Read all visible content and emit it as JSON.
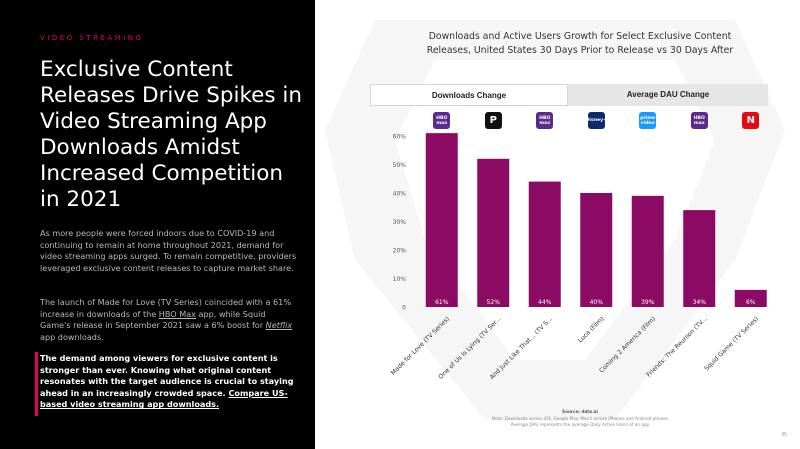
{
  "left": {
    "eyebrow": "VIDEO STREAMING",
    "headline": "Exclusive Content Releases Drive Spikes in Video Streaming App Downloads Amidst Increased Competition in 2021",
    "para1": "As more people were forced indoors due to COVID-19 and continuing to remain at home throughout 2021, demand for video streaming apps surged. To remain competitive, providers leveraged exclusive content releases to capture market share.",
    "para2_a": "The launch of Made for Love (TV Series) coincided with a 61% increase in downloads of the ",
    "para2_link1": "HBO Max",
    "para2_b": " app, while Squid Game's release in September 2021 saw a 6% boost for ",
    "para2_link2": "Netflix",
    "para2_c": " app downloads.",
    "bold_a": "The demand among viewers for exclusive content is stronger than ever. Knowing what original content resonates with the target audience is crucial to staying ahead in an increasingly crowded space. ",
    "bold_link": "Compare US-based video streaming app downloads."
  },
  "chart_title": "Downloads and Active Users Growth for Select Exclusive Content Releases, United States 30 Days Prior to Release vs 30 Days After",
  "tabs": [
    {
      "label": "Downloads Change",
      "active": true
    },
    {
      "label": "Average DAU Change",
      "active": false
    }
  ],
  "logos": [
    {
      "name": "hbo-max-logo",
      "text": "HBO max",
      "color": "#5b2a8c"
    },
    {
      "name": "peacock-logo",
      "text": "P",
      "color": "#111111"
    },
    {
      "name": "hbo-max-logo",
      "text": "HBO max",
      "color": "#5b2a8c"
    },
    {
      "name": "disney-plus-logo",
      "text": "Disney+",
      "color": "#0e2a6b"
    },
    {
      "name": "prime-video-logo",
      "text": "prime video",
      "color": "#1a98ff"
    },
    {
      "name": "hbo-max-logo",
      "text": "HBO max",
      "color": "#5b2a8c"
    },
    {
      "name": "netflix-logo",
      "text": "N",
      "color": "#e50914"
    }
  ],
  "chart_data": {
    "type": "bar",
    "categories": [
      "Made for Love (TV Series)",
      "One of Us Is Lying (TV Ser...",
      "And Just Like That... (TV S...",
      "Luca (Film)",
      "Coming 2 America (Film)",
      "Friends: The Reunion (TV...",
      "Squid Game (TV Series)"
    ],
    "values": [
      61,
      52,
      44,
      40,
      39,
      34,
      6
    ],
    "value_labels": [
      "61%",
      "52%",
      "44%",
      "40%",
      "39%",
      "34%",
      "6%"
    ],
    "yticks": [
      "0",
      "10%",
      "20%",
      "30%",
      "40%",
      "50%",
      "60%"
    ],
    "ylim": [
      0,
      65
    ],
    "bar_color": "#8b0a63",
    "grid": false
  },
  "footnote": {
    "source": "Source: data.ai",
    "line1": "Note: Downloads across iOS, Google Play. Mac's across iPhones and Android phones",
    "line2": "Average DAU represents the average Daily Active Users of an app"
  },
  "page_number": "35"
}
